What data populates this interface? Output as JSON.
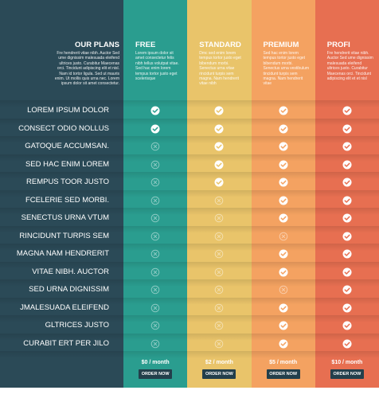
{
  "header": {
    "title": "OUR PLANS",
    "description": "Fre hendrerit vitae nibh. Auctor Sed ume dignissim malesuada eleifend ultrices justo. Curabitur Maecenas orci. Tincidunt adipiscing elit et nisl. Nam id tortor ligula. Sed ut mauris enim. Ut mollis quis urna nec. Lorem ipsum dolor sit amet consectetur."
  },
  "plans": [
    {
      "name": "FREE",
      "description": "Lorem ipsum dolor sit amet consectetur felis nibh tellus volutpat vitae. Sed hac enim lorem tempus tortor justo eget scelerisque",
      "price": "$0 / month",
      "button": "ORDER NOW",
      "color": "#2a9d8f"
    },
    {
      "name": "STANDARD",
      "description": "Dmc sed enim lorem tempus tortor justo eget bibendum morbi. Senectus urna vitae rincidunt turpis sem magna. Nam hendrerit vitae nibh",
      "price": "$2 / month",
      "button": "ORDER NOW",
      "color": "#e9c46a"
    },
    {
      "name": "PREMIUM",
      "description": "Sed hac enim lorem tempus tortor justo eget bibendum morbi. Senectus urna vestibulum tincidunt turpis sem magna. Nam hendrerit vitae",
      "price": "$5 / month",
      "button": "ORDER NOW",
      "color": "#f4a261"
    },
    {
      "name": "PROFI",
      "description": "Fre hendrerit vitae nibh. Auctor Sed ume dignissim malesuada eleifend ultrices justo. Curabitur Maecenas orci. Tincidunt adipiscing elit et et nisl",
      "price": "$10 / month",
      "button": "ORDER NOW",
      "color": "#e76f51"
    }
  ],
  "features": [
    {
      "name": "LOREM IPSUM DOLOR",
      "included": [
        true,
        true,
        true,
        true
      ]
    },
    {
      "name": "CONSECT ODIO NOLLUS",
      "included": [
        true,
        true,
        true,
        true
      ]
    },
    {
      "name": "GATOQUE ACCUMSAN.",
      "included": [
        false,
        true,
        true,
        true
      ]
    },
    {
      "name": "SED HAC ENIM LOREM",
      "included": [
        false,
        true,
        true,
        true
      ]
    },
    {
      "name": "REMPUS TOOR JUSTO",
      "included": [
        false,
        true,
        true,
        true
      ]
    },
    {
      "name": "FCELERIE SED MORBI.",
      "included": [
        false,
        false,
        true,
        true
      ]
    },
    {
      "name": "SENECTUS URNA VTUM",
      "included": [
        false,
        false,
        true,
        true
      ]
    },
    {
      "name": "RINCIDUNT TURPIS SEM",
      "included": [
        false,
        false,
        false,
        true
      ]
    },
    {
      "name": "MAGNA NAM HENDRERIT",
      "included": [
        false,
        false,
        true,
        true
      ]
    },
    {
      "name": "VITAE NIBH. AUCTOR",
      "included": [
        false,
        false,
        true,
        true
      ]
    },
    {
      "name": "SED URNA DIGNISSIM",
      "included": [
        false,
        false,
        false,
        true
      ]
    },
    {
      "name": "JMALESUADA ELEIFEND",
      "included": [
        false,
        false,
        true,
        true
      ]
    },
    {
      "name": "GLTRICES JUSTO",
      "included": [
        false,
        false,
        true,
        true
      ]
    },
    {
      "name": "CURABIT ERT PER JILO",
      "included": [
        false,
        false,
        true,
        true
      ]
    }
  ],
  "left_color": "#2b4a57"
}
